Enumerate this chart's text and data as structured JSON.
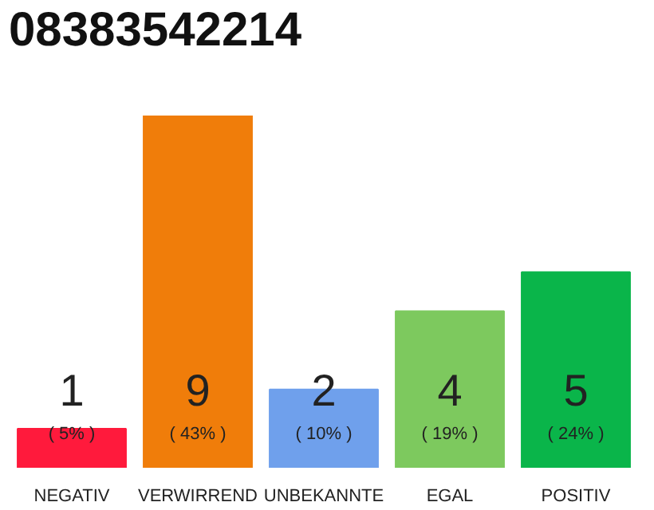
{
  "chart_data": {
    "type": "bar",
    "title": "08383542214",
    "categories": [
      "NEGATIV",
      "VERWIRREND",
      "UNBEKANNTE",
      "EGAL",
      "POSITIV"
    ],
    "values": [
      1,
      9,
      2,
      4,
      5
    ],
    "colors": [
      "#ff1a3c",
      "#f07d0a",
      "#6fa0ec",
      "#7dc95e",
      "#0ab54a"
    ],
    "ylim": [
      0,
      9
    ],
    "tick_labels": "x",
    "data_labels": true,
    "grid": false,
    "annotations": [
      "( 5% )",
      "( 43% )",
      "( 10% )",
      "( 19% )",
      "( 24% )"
    ]
  }
}
